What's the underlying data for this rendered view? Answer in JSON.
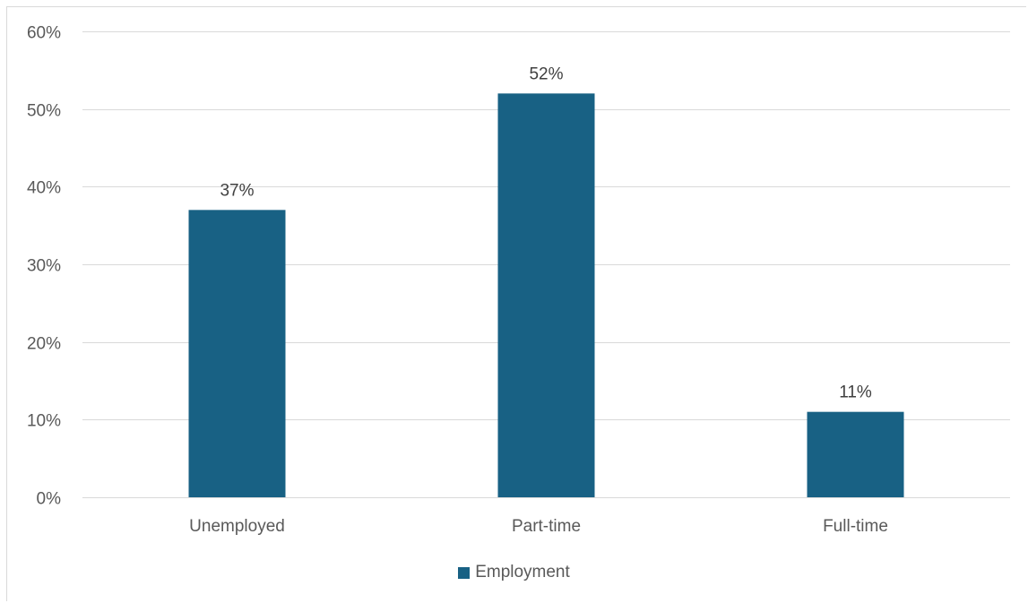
{
  "chart_data": {
    "type": "bar",
    "categories": [
      "Unemployed",
      "Part-time",
      "Full-time"
    ],
    "series": [
      {
        "name": "Employment",
        "values": [
          37,
          52,
          11
        ],
        "color": "#186184"
      }
    ],
    "data_labels": [
      "37%",
      "52%",
      "11%"
    ],
    "y_ticks": [
      "0%",
      "10%",
      "20%",
      "30%",
      "40%",
      "50%",
      "60%"
    ],
    "ylim": [
      0,
      60
    ],
    "grid": true,
    "legend_position": "bottom",
    "title": "",
    "xlabel": "",
    "ylabel": ""
  }
}
